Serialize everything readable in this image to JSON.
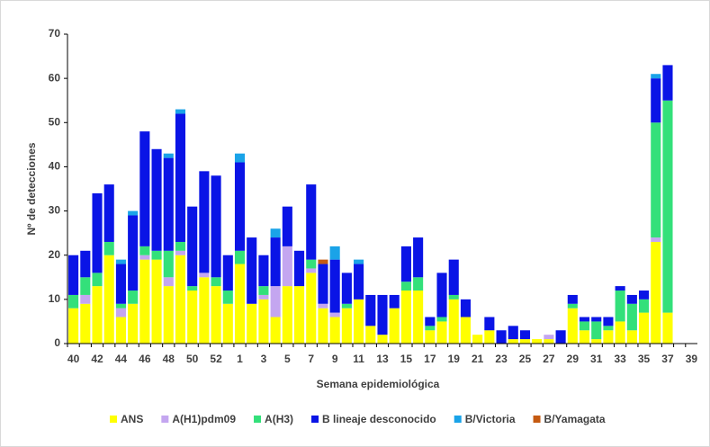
{
  "chart_data": {
    "type": "stacked-bar",
    "x_label": "Semana epidemiológica",
    "y_label": "Nº de detecciones",
    "categories": [
      "40",
      null,
      "42",
      null,
      "44",
      null,
      "46",
      null,
      "48",
      null,
      "50",
      null,
      "52",
      null,
      "1",
      null,
      "3",
      null,
      "5",
      null,
      "7",
      null,
      "9",
      null,
      "11",
      null,
      "13",
      null,
      "15",
      null,
      "17",
      null,
      "19",
      null,
      "21",
      null,
      "23",
      null,
      "25",
      null,
      "27",
      null,
      "29",
      null,
      "31",
      null,
      "33",
      null,
      "35",
      null,
      "37",
      null,
      "39"
    ],
    "series": [
      {
        "name": "ANS",
        "color": "#ffff00",
        "values": [
          8,
          9,
          13,
          20,
          6,
          9,
          19,
          19,
          13,
          20,
          12,
          15,
          13,
          9,
          18,
          9,
          10,
          6,
          13,
          13,
          16,
          8,
          6,
          8,
          10,
          4,
          2,
          8,
          12,
          12,
          3,
          5,
          10,
          6,
          2,
          3,
          0,
          1,
          1,
          1,
          1,
          0,
          8,
          3,
          1,
          3,
          5,
          3,
          7,
          23,
          7,
          0,
          0
        ]
      },
      {
        "name": "A(H1)pdm09",
        "color": "#c4a6f0",
        "values": [
          0,
          2,
          0,
          0,
          2,
          0,
          1,
          0,
          2,
          1,
          0,
          1,
          0,
          0,
          0,
          0,
          1,
          7,
          9,
          0,
          1,
          1,
          1,
          0,
          0,
          0,
          0,
          0,
          0,
          0,
          0,
          0,
          0,
          0,
          0,
          0,
          0,
          0,
          0,
          0,
          1,
          0,
          0,
          0,
          0,
          0,
          0,
          0,
          0,
          1,
          0,
          0,
          0
        ]
      },
      {
        "name": "A(H3)",
        "color": "#33e07a",
        "values": [
          3,
          4,
          3,
          3,
          1,
          3,
          2,
          2,
          6,
          2,
          1,
          0,
          2,
          3,
          3,
          0,
          2,
          0,
          0,
          0,
          2,
          0,
          0,
          1,
          0,
          0,
          0,
          0,
          2,
          3,
          1,
          1,
          1,
          0,
          0,
          0,
          0,
          0,
          0,
          0,
          0,
          0,
          1,
          2,
          4,
          1,
          7,
          6,
          3,
          26,
          48,
          0,
          0
        ]
      },
      {
        "name": "B lineaje desconocido",
        "color": "#0a14e6",
        "values": [
          9,
          6,
          18,
          13,
          9,
          17,
          26,
          23,
          21,
          29,
          18,
          23,
          23,
          8,
          20,
          15,
          7,
          11,
          9,
          8,
          17,
          9,
          12,
          7,
          8,
          7,
          9,
          3,
          8,
          9,
          2,
          10,
          8,
          4,
          0,
          3,
          3,
          3,
          2,
          0,
          0,
          3,
          2,
          1,
          1,
          2,
          1,
          2,
          2,
          10,
          8,
          0,
          0
        ]
      },
      {
        "name": "B/Victoria",
        "color": "#1aa3e8",
        "values": [
          0,
          0,
          0,
          0,
          1,
          1,
          0,
          0,
          1,
          1,
          0,
          0,
          0,
          0,
          2,
          0,
          0,
          2,
          0,
          0,
          0,
          0,
          3,
          0,
          1,
          0,
          0,
          0,
          0,
          0,
          0,
          0,
          0,
          0,
          0,
          0,
          0,
          0,
          0,
          0,
          0,
          0,
          0,
          0,
          0,
          0,
          0,
          0,
          0,
          1,
          0,
          0,
          0
        ]
      },
      {
        "name": "B/Yamagata",
        "color": "#c55a11",
        "values": [
          0,
          0,
          0,
          0,
          0,
          0,
          0,
          0,
          0,
          0,
          0,
          0,
          0,
          0,
          0,
          0,
          0,
          0,
          0,
          0,
          0,
          1,
          0,
          0,
          0,
          0,
          0,
          0,
          0,
          0,
          0,
          0,
          0,
          0,
          0,
          0,
          0,
          0,
          0,
          0,
          0,
          0,
          0,
          0,
          0,
          0,
          0,
          0,
          0,
          0,
          0,
          0,
          0
        ]
      }
    ],
    "ylim": [
      0,
      70
    ],
    "yticks": [
      0,
      10,
      20,
      30,
      40,
      50,
      60,
      70
    ],
    "grid": false,
    "legend": "bottom"
  }
}
